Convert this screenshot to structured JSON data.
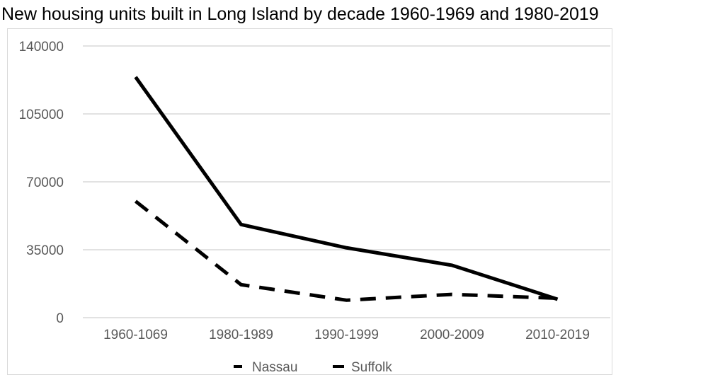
{
  "chart_data": {
    "type": "line",
    "title": "New housing units built in Long Island by decade 1960-1969 and 1980-2019",
    "xlabel": "",
    "ylabel": "",
    "categories": [
      "1960-1069",
      "1980-1989",
      "1990-1999",
      "2000-2009",
      "2010-2019"
    ],
    "series": [
      {
        "name": "Nassau",
        "values": [
          60000,
          17000,
          9000,
          12000,
          10000
        ],
        "color": "#000000",
        "line_style": "dashed"
      },
      {
        "name": "Suffolk",
        "values": [
          124000,
          48000,
          36000,
          27000,
          9500
        ],
        "color": "#000000",
        "line_style": "solid"
      }
    ],
    "ylim": [
      0,
      140000
    ],
    "yticks": [
      "0",
      "35000",
      "70000",
      "105000",
      "140000"
    ],
    "grid": true,
    "legend_position": "bottom",
    "gridline_color": "#d9d9d9",
    "axis_text_color": "#595959"
  }
}
